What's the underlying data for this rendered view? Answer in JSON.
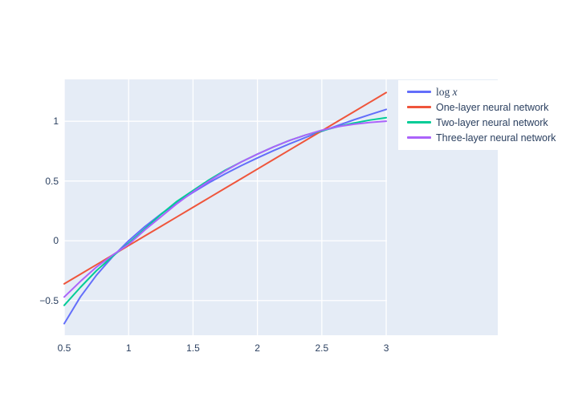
{
  "figure": {
    "background_color": "#ffffff",
    "plot_bgcolor": "#E5ECF6",
    "grid_color": "#ffffff",
    "tick_text_color": "#2a3f5f",
    "title": ""
  },
  "chart_data": {
    "type": "line",
    "title": "",
    "xlabel": "",
    "ylabel": "",
    "grid": true,
    "legend_position": "top-right",
    "xlim": [
      0.5,
      3.006
    ],
    "ylim": [
      -0.79,
      1.35
    ],
    "x_ticks": {
      "values": [
        0.5,
        1,
        1.5,
        2,
        2.5,
        3
      ],
      "labels": [
        "0.5",
        "1",
        "1.5",
        "2",
        "2.5",
        "3"
      ]
    },
    "y_ticks": {
      "values": [
        1,
        0.5,
        0,
        -0.5
      ],
      "labels": [
        "1",
        "0.5",
        "0",
        "−0.5"
      ]
    },
    "x": [
      0.5,
      0.625,
      0.75,
      0.875,
      1,
      1.125,
      1.25,
      1.375,
      1.5,
      1.625,
      1.75,
      1.875,
      2,
      2.125,
      2.25,
      2.375,
      2.5,
      2.625,
      2.75,
      2.875,
      3
    ],
    "series": [
      {
        "name": "log x",
        "math_label": true,
        "label_parts": [
          [
            "log ",
            false
          ],
          [
            "x",
            true
          ]
        ],
        "color": "#636EFA",
        "values": [
          -0.693,
          -0.47,
          -0.288,
          -0.134,
          0,
          0.118,
          0.223,
          0.318,
          0.405,
          0.486,
          0.56,
          0.629,
          0.693,
          0.754,
          0.811,
          0.865,
          0.916,
          0.965,
          1.012,
          1.056,
          1.099
        ]
      },
      {
        "name": "One-layer neural network",
        "math_label": false,
        "color": "#EF553B",
        "values": [
          -0.36,
          -0.28,
          -0.2,
          -0.12,
          -0.04,
          0.04,
          0.12,
          0.2,
          0.28,
          0.36,
          0.44,
          0.52,
          0.6,
          0.68,
          0.76,
          0.84,
          0.92,
          1,
          1.08,
          1.16,
          1.24
        ]
      },
      {
        "name": "Two-layer neural network",
        "math_label": false,
        "color": "#00CC96",
        "values": [
          -0.54,
          -0.39,
          -0.25,
          -0.13,
          -0.02,
          0.1,
          0.22,
          0.33,
          0.42,
          0.51,
          0.59,
          0.66,
          0.725,
          0.785,
          0.84,
          0.885,
          0.92,
          0.955,
          0.985,
          1.01,
          1.03
        ]
      },
      {
        "name": "Three-layer neural network",
        "math_label": false,
        "color": "#AB63FA",
        "values": [
          -0.47,
          -0.34,
          -0.22,
          -0.12,
          -0.03,
          0.09,
          0.2,
          0.31,
          0.41,
          0.5,
          0.585,
          0.66,
          0.725,
          0.785,
          0.84,
          0.885,
          0.925,
          0.955,
          0.975,
          0.99,
          1
        ]
      }
    ]
  }
}
